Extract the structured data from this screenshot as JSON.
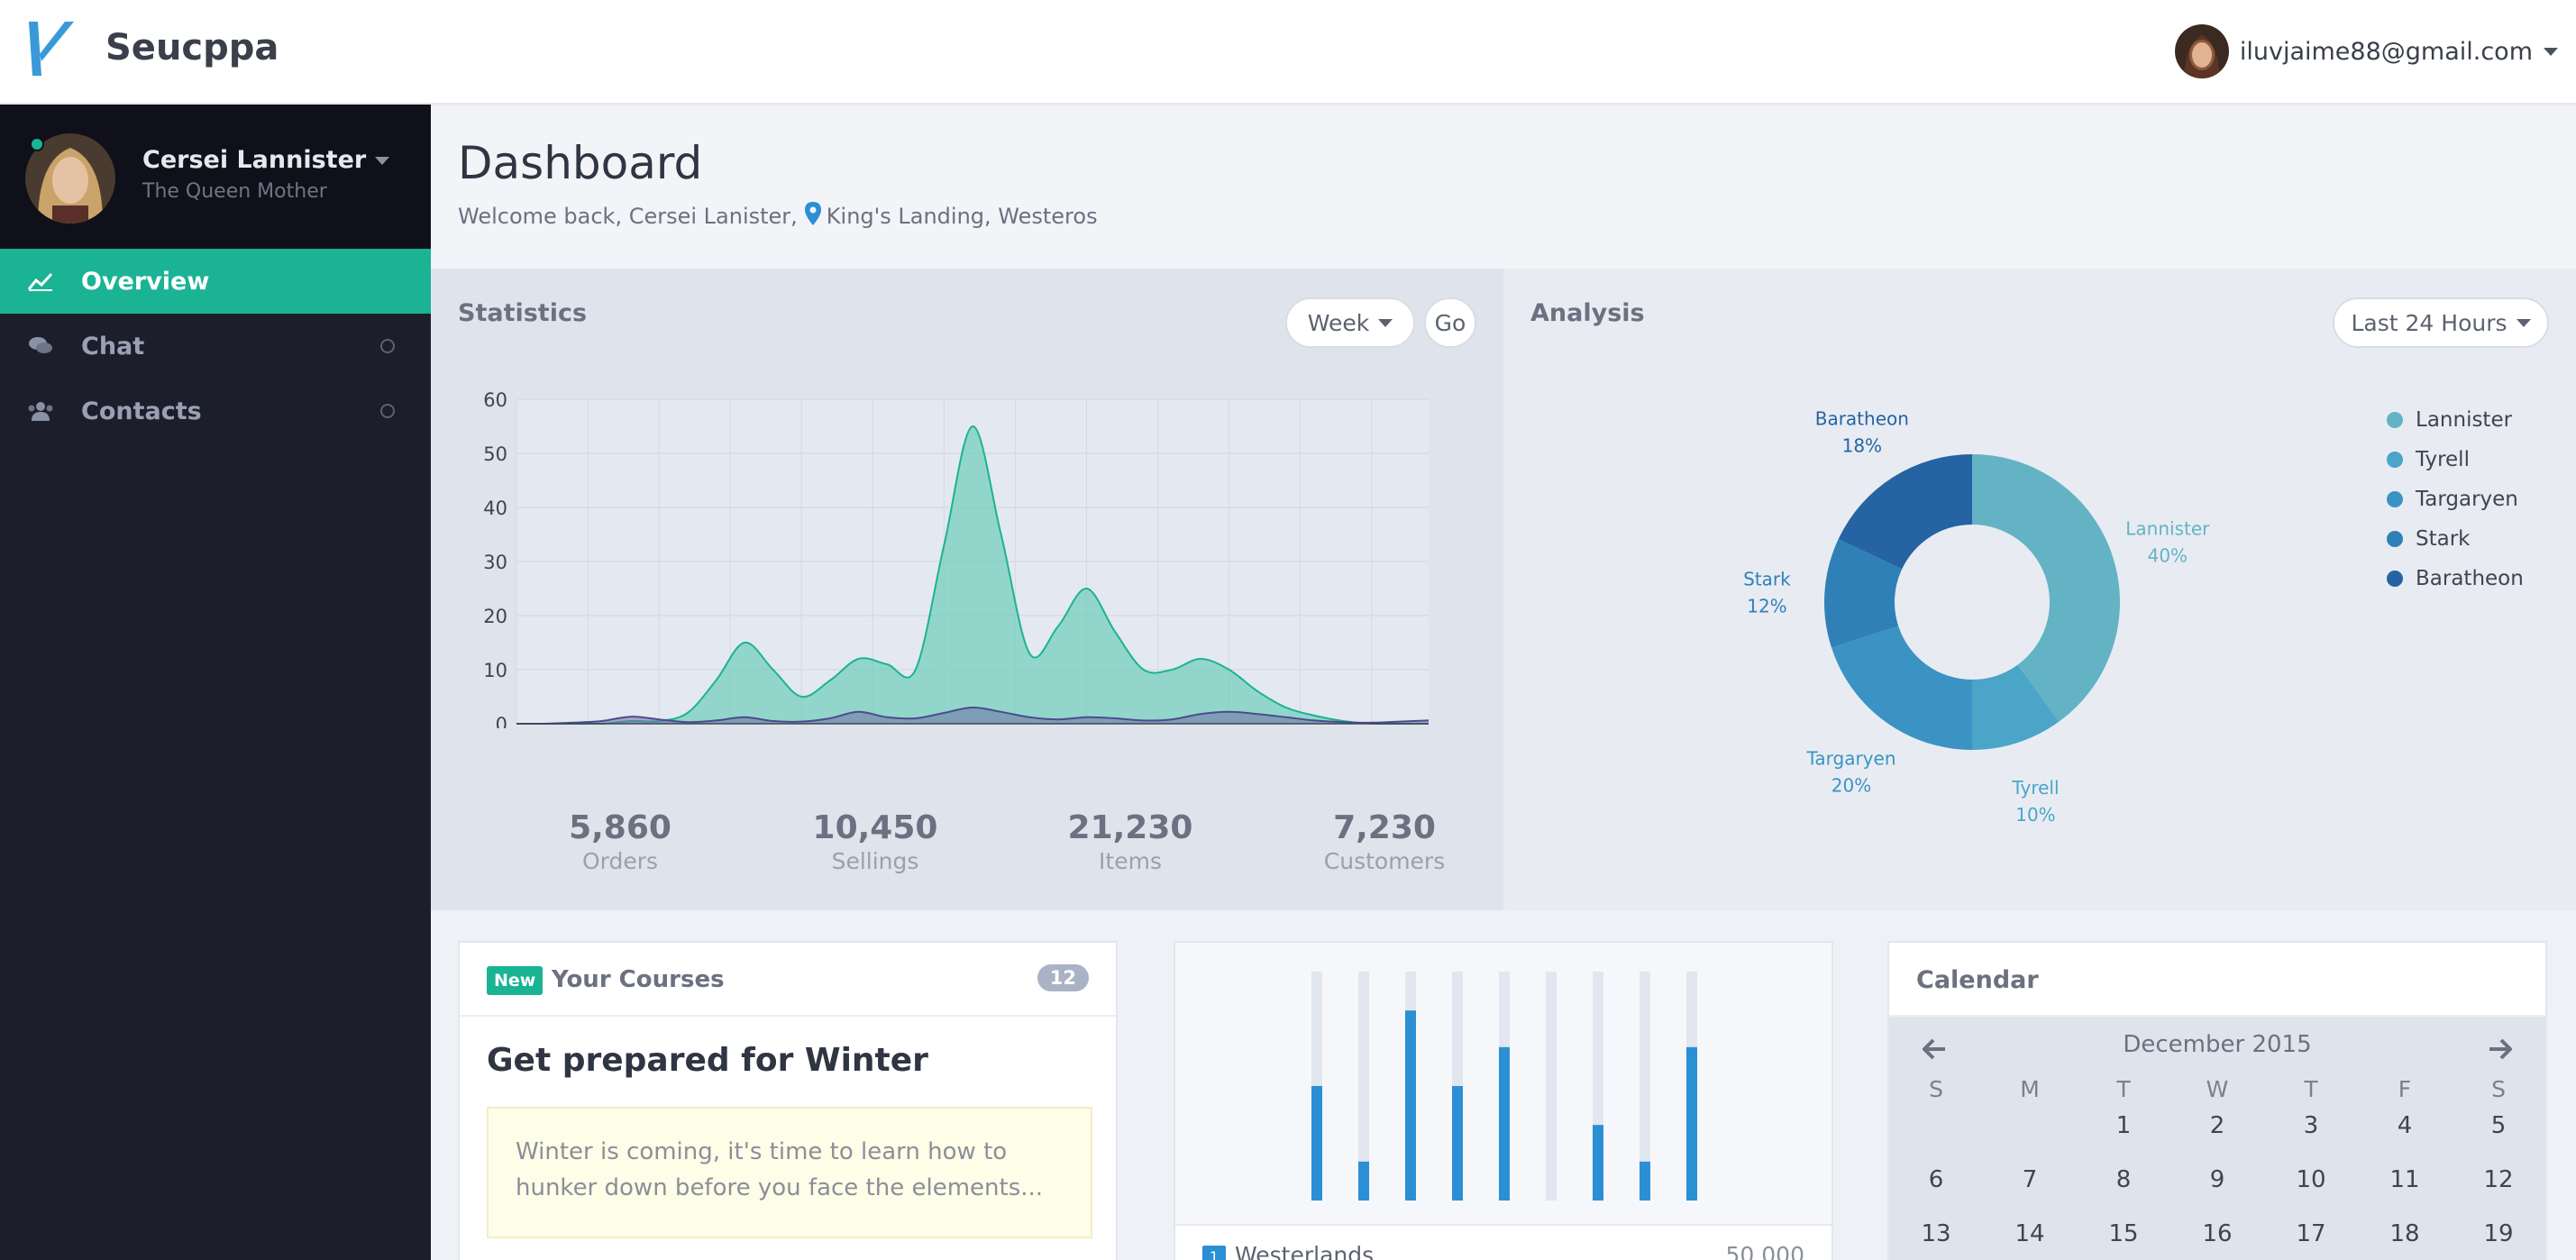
{
  "topbar": {
    "brand": "Seucppa",
    "user_email": "iluvjaime88@gmail.com"
  },
  "sidebar": {
    "profile": {
      "name": "Cersei Lannister",
      "role": "The Queen Mother"
    },
    "items": [
      {
        "label": "Overview",
        "icon": "line-chart-icon",
        "active": true
      },
      {
        "label": "Chat",
        "icon": "chat-icon",
        "active": false
      },
      {
        "label": "Contacts",
        "icon": "users-icon",
        "active": false
      }
    ]
  },
  "header": {
    "title": "Dashboard",
    "welcome": "Welcome back, Cersei Lanister,",
    "location": "King's Landing, Westeros"
  },
  "statistics": {
    "title": "Statistics",
    "period_button": "Week",
    "go_button": "Go",
    "totals": [
      {
        "value": "5,860",
        "label": "Orders"
      },
      {
        "value": "10,450",
        "label": "Sellings"
      },
      {
        "value": "21,230",
        "label": "Items"
      },
      {
        "value": "7,230",
        "label": "Customers"
      }
    ]
  },
  "analysis": {
    "title": "Analysis",
    "range_button": "Last 24 Hours"
  },
  "courses": {
    "badge": "New",
    "title": "Your Courses",
    "count": "12",
    "heading": "Get prepared for Winter",
    "note": "Winter is coming, it's time to learn how to hunker down before you face the elements..."
  },
  "bars": {
    "footer_label": "Westerlands",
    "footer_value": "50,000",
    "values": [
      0.5,
      0.17,
      0.83,
      0.5,
      0.67,
      0.0,
      0.33,
      0.17,
      0.67
    ]
  },
  "calendar": {
    "title": "Calendar",
    "month": "December 2015",
    "weekdays": [
      "S",
      "M",
      "T",
      "W",
      "T",
      "F",
      "S"
    ],
    "weeks": [
      [
        "",
        "",
        "1",
        "2",
        "3",
        "4",
        "5"
      ],
      [
        "6",
        "7",
        "8",
        "9",
        "10",
        "11",
        "12"
      ],
      [
        "13",
        "14",
        "15",
        "16",
        "17",
        "18",
        "19"
      ]
    ]
  },
  "chart_data": [
    {
      "type": "area",
      "x": [
        0,
        0.5,
        1,
        1.5,
        2,
        2.5,
        3,
        3.5,
        4,
        4.5,
        5,
        5.5,
        6,
        6.5,
        7,
        7.5,
        8,
        8.5,
        9,
        9.5,
        10,
        10.5,
        11,
        11.5,
        12,
        12.5,
        13,
        13.5,
        14,
        14.5,
        15,
        15.5,
        16
      ],
      "series": [
        {
          "color": "#5cc9b3",
          "values": [
            0,
            0,
            0,
            0,
            0.5,
            0.5,
            2,
            8,
            15,
            10,
            5,
            8,
            12,
            11,
            10,
            33,
            55,
            35,
            13,
            18,
            25,
            17,
            10,
            10,
            12,
            10,
            6,
            3,
            1.5,
            0.5,
            0,
            0,
            0
          ]
        },
        {
          "color": "#6e6fa8",
          "values": [
            0,
            0,
            0.2,
            0.5,
            1.3,
            0.8,
            0.3,
            0.6,
            1.2,
            0.5,
            0.4,
            1,
            2.2,
            1.2,
            1,
            2,
            3,
            2.2,
            1.2,
            0.8,
            1.2,
            1,
            0.6,
            0.8,
            1.8,
            2.2,
            1.8,
            1.2,
            0.6,
            0.3,
            0.2,
            0.4,
            0.6
          ]
        }
      ],
      "xlim": [
        0,
        16
      ],
      "ylim": [
        0,
        60
      ],
      "x_ticks": [
        0.0,
        2.5,
        5.0,
        7.5,
        10.0,
        12.5,
        15.0
      ],
      "y_ticks": [
        0,
        10,
        20,
        30,
        40,
        50,
        60
      ],
      "grid": true
    },
    {
      "type": "pie",
      "donut": true,
      "slices": [
        {
          "name": "Lannister",
          "value": 40,
          "color": "#63b3c5"
        },
        {
          "name": "Tyrell",
          "value": 10,
          "color": "#4aa5c9"
        },
        {
          "name": "Targaryen",
          "value": 20,
          "color": "#3b93c4"
        },
        {
          "name": "Stark",
          "value": 12,
          "color": "#3080b8"
        },
        {
          "name": "Baratheon",
          "value": 18,
          "color": "#2563a3"
        }
      ],
      "legend_position": "right"
    }
  ]
}
